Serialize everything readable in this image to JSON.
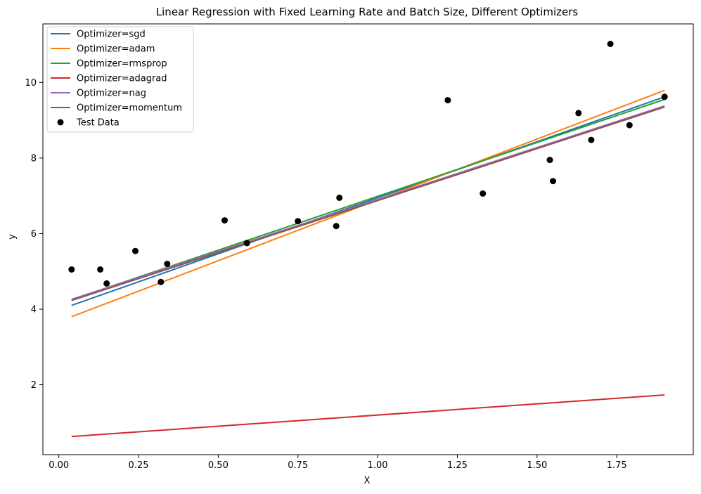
{
  "chart_data": {
    "type": "line",
    "title": "Linear Regression with Fixed Learning Rate and Batch Size, Different Optimizers",
    "xlabel": "X",
    "ylabel": "y",
    "xlim": [
      -0.05,
      1.99
    ],
    "ylim": [
      0.15,
      11.55
    ],
    "x_ticks": [
      0.0,
      0.25,
      0.5,
      0.75,
      1.0,
      1.25,
      1.5,
      1.75
    ],
    "x_tick_labels": [
      "0.00",
      "0.25",
      "0.50",
      "0.75",
      "1.00",
      "1.25",
      "1.50",
      "1.75"
    ],
    "y_ticks": [
      2,
      4,
      6,
      8,
      10
    ],
    "y_tick_labels": [
      "2",
      "4",
      "6",
      "8",
      "10"
    ],
    "grid": false,
    "legend_position": "top-left",
    "series": [
      {
        "name": "Optimizer=sgd",
        "color": "#1f77b4",
        "x": [
          0.04,
          1.9
        ],
        "y": [
          4.1,
          9.62
        ]
      },
      {
        "name": "Optimizer=adam",
        "color": "#ff7f0e",
        "x": [
          0.04,
          1.9
        ],
        "y": [
          3.8,
          9.79
        ]
      },
      {
        "name": "Optimizer=rmsprop",
        "color": "#2ca02c",
        "x": [
          0.04,
          1.9
        ],
        "y": [
          4.25,
          9.55
        ]
      },
      {
        "name": "Optimizer=adagrad",
        "color": "#d62728",
        "x": [
          0.04,
          1.9
        ],
        "y": [
          0.63,
          1.73
        ]
      },
      {
        "name": "Optimizer=nag",
        "color": "#9467bd",
        "x": [
          0.04,
          1.9
        ],
        "y": [
          4.26,
          9.38
        ]
      },
      {
        "name": "Optimizer=momentum",
        "color": "#8c564b",
        "x": [
          0.04,
          1.9
        ],
        "y": [
          4.23,
          9.35
        ]
      }
    ],
    "scatter": {
      "name": "Test Data",
      "color": "#000000",
      "points": [
        [
          0.04,
          5.05
        ],
        [
          0.13,
          5.05
        ],
        [
          0.15,
          4.68
        ],
        [
          0.24,
          5.54
        ],
        [
          0.32,
          4.72
        ],
        [
          0.34,
          5.2
        ],
        [
          0.52,
          6.35
        ],
        [
          0.59,
          5.75
        ],
        [
          0.75,
          6.33
        ],
        [
          0.87,
          6.2
        ],
        [
          0.88,
          6.95
        ],
        [
          1.22,
          9.53
        ],
        [
          1.33,
          7.06
        ],
        [
          1.54,
          7.95
        ],
        [
          1.55,
          7.39
        ],
        [
          1.63,
          9.19
        ],
        [
          1.67,
          8.48
        ],
        [
          1.73,
          11.02
        ],
        [
          1.79,
          8.87
        ],
        [
          1.9,
          9.62
        ]
      ]
    }
  }
}
